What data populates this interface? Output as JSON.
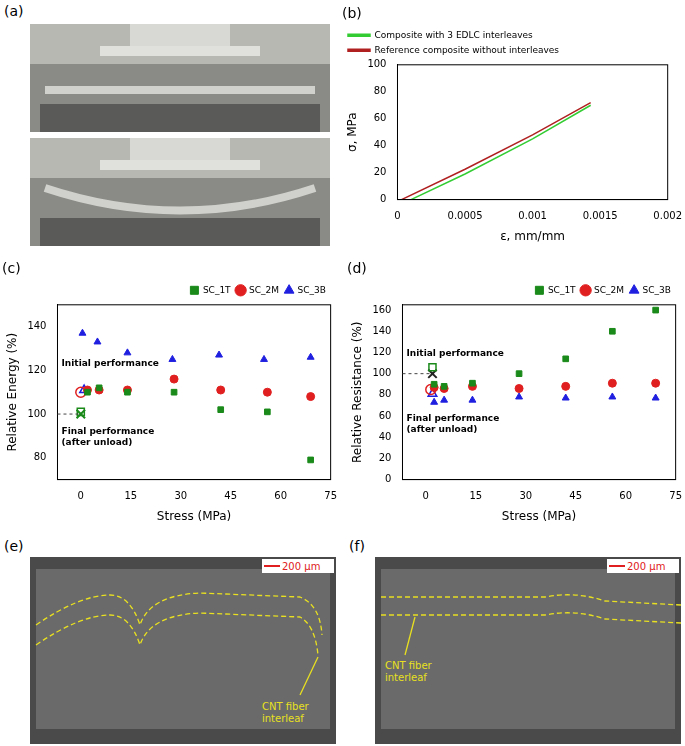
{
  "chart_data": [
    {
      "title": "(b)",
      "type": "line",
      "x_label": "ε, mm/mm",
      "y_label": "σ, MPa",
      "xlim": [
        0,
        0.002
      ],
      "xticks": [
        0,
        0.0005,
        0.001,
        0.0015,
        0.002
      ],
      "ylim": [
        0,
        100
      ],
      "yticks": [
        0,
        20,
        40,
        60,
        80,
        100
      ],
      "grid": false,
      "legend": "upper left",
      "series": [
        {
          "name": "Composite with 3 EDLC interleaves",
          "color": "#33cc33",
          "x": [
            0.0001,
            0.0005,
            0.001,
            0.00143
          ],
          "values": [
            0,
            19,
            45,
            70
          ]
        },
        {
          "name": "Reference composite without interleaves",
          "color": "#b02020",
          "x": [
            3e-05,
            0.0005,
            0.001,
            0.00143
          ],
          "values": [
            0,
            22.5,
            48,
            72
          ]
        }
      ]
    },
    {
      "title": "(c)",
      "type": "scatter",
      "x_label": "Stress (MPa)",
      "y_label": "Relative Energy (%)",
      "xlim": [
        -7,
        75
      ],
      "xticks": [
        0,
        15,
        30,
        45,
        60,
        75
      ],
      "ylim": [
        70,
        150
      ],
      "yticks": [
        80,
        100,
        120,
        140
      ],
      "grid": false,
      "legend": "upper right",
      "annotations": {
        "initial": "Initial performance",
        "final": [
          "Final performance",
          "(after unload)"
        ]
      },
      "initial": {
        "x": 0,
        "y": 100,
        "color": "#1a8a1a",
        "marker": "x"
      },
      "series": [
        {
          "name": "SC_1T",
          "color": "#1a8a1a",
          "marker": "square",
          "x": [
            2,
            5.5,
            14,
            28,
            42,
            56,
            69
          ],
          "values": [
            110,
            112,
            110,
            110,
            102,
            101,
            79
          ],
          "after_unload": {
            "x": 0,
            "y": 101
          }
        },
        {
          "name": "SC_2M",
          "color": "#e02020",
          "marker": "circle",
          "x": [
            2,
            5.5,
            14,
            28,
            42,
            56,
            69
          ],
          "values": [
            111,
            111,
            111,
            116,
            111,
            110,
            108
          ],
          "after_unload": {
            "x": 0,
            "y": 110
          }
        },
        {
          "name": "SC_3B",
          "color": "#1f1fe0",
          "marker": "triangle",
          "x": [
            0.5,
            5,
            14,
            27.5,
            41.5,
            55,
            69
          ],
          "values": [
            137,
            133,
            128,
            125,
            127,
            125,
            126
          ],
          "after_unload": {
            "x": 1,
            "y": 111
          }
        }
      ]
    },
    {
      "title": "(d)",
      "type": "scatter",
      "x_label": "Stress (MPa)",
      "y_label": "Relative Resistance (%)",
      "xlim": [
        -7,
        75
      ],
      "xticks": [
        0,
        15,
        30,
        45,
        60,
        75
      ],
      "ylim": [
        0,
        165
      ],
      "yticks": [
        0,
        20,
        40,
        60,
        80,
        100,
        120,
        140,
        160
      ],
      "grid": false,
      "legend": "upper right",
      "annotations": {
        "initial": "Initial performance",
        "final": [
          "Final performance",
          "(after unload)"
        ]
      },
      "initial": {
        "x": 2,
        "y": 100,
        "color": "#222222",
        "marker": "x"
      },
      "series": [
        {
          "name": "SC_1T",
          "color": "#1a8a1a",
          "marker": "square",
          "x": [
            2.5,
            5.5,
            14,
            28,
            42,
            56,
            69
          ],
          "values": [
            90,
            88,
            91,
            100,
            114,
            140,
            160
          ],
          "after_unload": {
            "x": 2,
            "y": 106
          }
        },
        {
          "name": "SC_2M",
          "color": "#e02020",
          "marker": "circle",
          "x": [
            2.5,
            5.5,
            14,
            28,
            42,
            56,
            69
          ],
          "values": [
            87,
            86,
            88,
            86,
            88,
            91,
            91
          ],
          "after_unload": {
            "x": 1.5,
            "y": 85
          }
        },
        {
          "name": "SC_3B",
          "color": "#1f1fe0",
          "marker": "triangle",
          "x": [
            2.5,
            5.5,
            14,
            28,
            42,
            56,
            69
          ],
          "values": [
            73,
            75,
            75,
            78,
            77,
            78,
            77
          ],
          "after_unload": {
            "x": 2,
            "y": 81
          }
        }
      ]
    }
  ],
  "images": [
    {
      "title": "(a)"
    },
    {
      "title": "(e)",
      "scale_bar": "200 μm",
      "annotation": "CNT fiber interleaf"
    },
    {
      "title": "(f)",
      "scale_bar": "200 μm",
      "annotation": "CNT fiber interleaf"
    }
  ]
}
